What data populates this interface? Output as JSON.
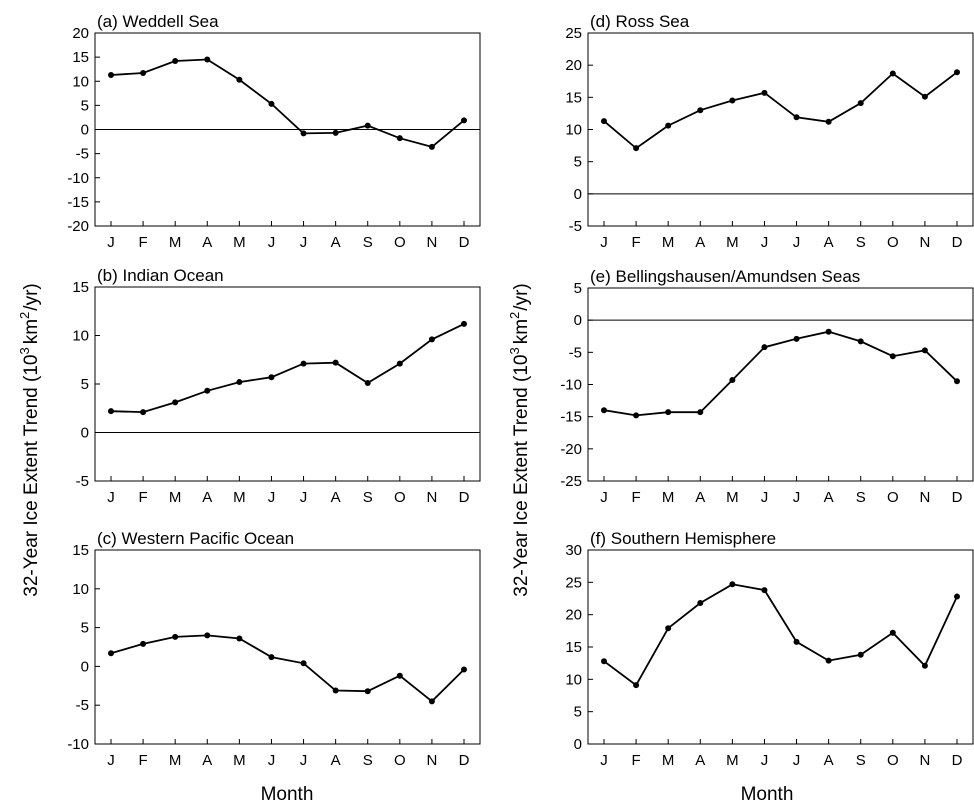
{
  "ylabel_prefix": "32-Year Ice Extent Trend (10",
  "ylabel_exp1": "3",
  "ylabel_mid": "km",
  "ylabel_exp2": "2",
  "ylabel_suffix": "/yr)",
  "xlabel": "Month",
  "chart_data": [
    {
      "type": "line",
      "title": "(a) Weddell Sea",
      "categories": [
        "J",
        "F",
        "M",
        "A",
        "M",
        "J",
        "J",
        "A",
        "S",
        "O",
        "N",
        "D"
      ],
      "values": [
        11.3,
        11.7,
        14.2,
        14.5,
        10.3,
        5.3,
        -0.8,
        -0.7,
        0.8,
        -1.8,
        -3.6,
        1.9
      ],
      "ylim": [
        -20,
        20
      ],
      "yticks": [
        -20,
        -15,
        -10,
        -5,
        0,
        5,
        10,
        15,
        20
      ],
      "zero_line": true
    },
    {
      "type": "line",
      "title": "(b) Indian Ocean",
      "categories": [
        "J",
        "F",
        "M",
        "A",
        "M",
        "J",
        "J",
        "A",
        "S",
        "O",
        "N",
        "D"
      ],
      "values": [
        2.2,
        2.1,
        3.1,
        4.3,
        5.2,
        5.7,
        7.1,
        7.2,
        5.1,
        7.1,
        9.6,
        11.2
      ],
      "ylim": [
        -5,
        15
      ],
      "yticks": [
        -5,
        0,
        5,
        10,
        15
      ],
      "zero_line": true
    },
    {
      "type": "line",
      "title": "(c) Western Pacific Ocean",
      "categories": [
        "J",
        "F",
        "M",
        "A",
        "M",
        "J",
        "J",
        "A",
        "S",
        "O",
        "N",
        "D"
      ],
      "values": [
        1.7,
        2.9,
        3.8,
        4.0,
        3.6,
        1.2,
        0.4,
        -3.1,
        -3.2,
        -1.2,
        -4.5,
        -0.4
      ],
      "ylim": [
        -10,
        15
      ],
      "yticks": [
        -10,
        -5,
        0,
        5,
        10,
        15
      ],
      "zero_line": false
    },
    {
      "type": "line",
      "title": "(d) Ross Sea",
      "categories": [
        "J",
        "F",
        "M",
        "A",
        "M",
        "J",
        "J",
        "A",
        "S",
        "O",
        "N",
        "D"
      ],
      "values": [
        11.3,
        7.1,
        10.6,
        13.0,
        14.5,
        15.7,
        11.9,
        11.2,
        14.1,
        18.7,
        15.1,
        18.9
      ],
      "ylim": [
        -5,
        25
      ],
      "yticks": [
        -5,
        0,
        5,
        10,
        15,
        20,
        25
      ],
      "zero_line": true
    },
    {
      "type": "line",
      "title": "(e) Bellingshausen/Amundsen Seas",
      "categories": [
        "J",
        "F",
        "M",
        "A",
        "M",
        "J",
        "J",
        "A",
        "S",
        "O",
        "N",
        "D"
      ],
      "values": [
        -14.0,
        -14.8,
        -14.3,
        -14.3,
        -9.3,
        -4.2,
        -2.9,
        -1.8,
        -3.3,
        -5.6,
        -4.7,
        -9.5
      ],
      "ylim": [
        -25,
        5
      ],
      "yticks": [
        -25,
        -20,
        -15,
        -10,
        -5,
        0,
        5
      ],
      "zero_line": true
    },
    {
      "type": "line",
      "title": "(f) Southern Hemisphere",
      "categories": [
        "J",
        "F",
        "M",
        "A",
        "M",
        "J",
        "J",
        "A",
        "S",
        "O",
        "N",
        "D"
      ],
      "values": [
        12.8,
        9.1,
        17.9,
        21.8,
        24.7,
        23.8,
        15.8,
        12.9,
        13.8,
        17.2,
        12.1,
        22.8
      ],
      "ylim": [
        0,
        30
      ],
      "yticks": [
        0,
        5,
        10,
        15,
        20,
        25,
        30
      ],
      "zero_line": false
    }
  ]
}
